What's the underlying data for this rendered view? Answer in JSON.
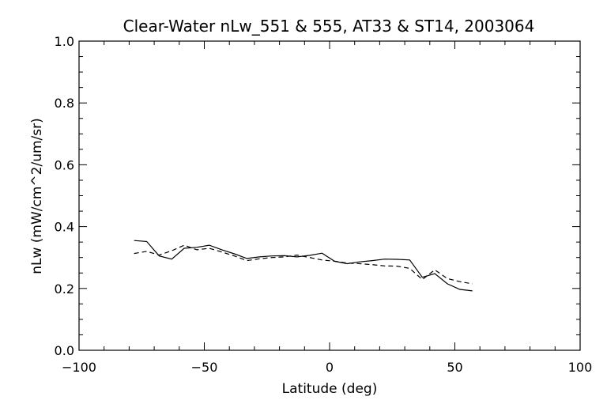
{
  "chart_data": {
    "type": "line",
    "title": "Clear-Water nLw_551 & 555, AT33 & ST14, 2003064",
    "xlabel": "Latitude (deg)",
    "ylabel": "nLw (mW/cm^2/um/sr)",
    "xlim": [
      -100,
      100
    ],
    "ylim": [
      0.0,
      1.0
    ],
    "x_ticks": [
      -100,
      -50,
      0,
      50,
      100
    ],
    "x_tick_labels": [
      "−100",
      "−50",
      "0",
      "50",
      "100"
    ],
    "y_ticks": [
      0.0,
      0.2,
      0.4,
      0.6,
      0.8,
      1.0
    ],
    "y_tick_labels": [
      "0.0",
      "0.2",
      "0.4",
      "0.6",
      "0.8",
      "1.0"
    ],
    "grid": false,
    "legend": "none",
    "series": [
      {
        "style": "solid",
        "color": "#000000",
        "x": [
          -78,
          -73,
          -68,
          -63,
          -58,
          -53,
          -48,
          -43,
          -38,
          -33,
          -28,
          -23,
          -18,
          -13,
          -8,
          -3,
          2,
          7,
          12,
          17,
          22,
          27,
          32,
          37,
          42,
          47,
          52,
          57
        ],
        "y": [
          0.355,
          0.352,
          0.305,
          0.295,
          0.33,
          0.333,
          0.34,
          0.325,
          0.312,
          0.297,
          0.302,
          0.305,
          0.306,
          0.302,
          0.307,
          0.314,
          0.288,
          0.28,
          0.286,
          0.29,
          0.295,
          0.294,
          0.292,
          0.236,
          0.248,
          0.215,
          0.197,
          0.192
        ]
      },
      {
        "style": "dashed",
        "color": "#000000",
        "x": [
          -78,
          -73,
          -68,
          -63,
          -58,
          -53,
          -48,
          -43,
          -38,
          -33,
          -28,
          -23,
          -18,
          -13,
          -8,
          -3,
          2,
          7,
          12,
          17,
          22,
          27,
          32,
          37,
          42,
          47,
          52,
          57
        ],
        "y": [
          0.313,
          0.32,
          0.308,
          0.322,
          0.34,
          0.325,
          0.33,
          0.318,
          0.305,
          0.29,
          0.296,
          0.3,
          0.302,
          0.308,
          0.3,
          0.292,
          0.288,
          0.282,
          0.28,
          0.277,
          0.273,
          0.272,
          0.265,
          0.229,
          0.26,
          0.232,
          0.222,
          0.215
        ]
      }
    ]
  }
}
